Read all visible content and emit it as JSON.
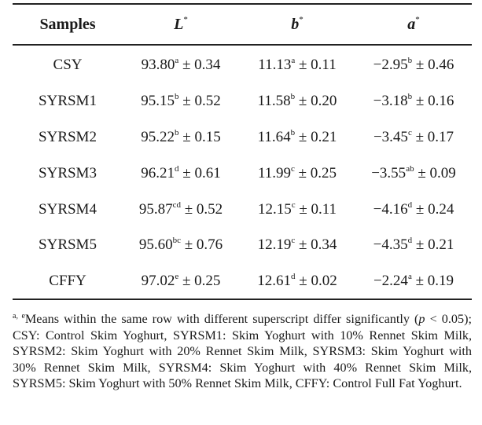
{
  "table": {
    "headers": [
      {
        "main": "Samples",
        "sup": ""
      },
      {
        "main": "L",
        "sup": "*"
      },
      {
        "main": "b",
        "sup": "*"
      },
      {
        "main": "a",
        "sup": "*"
      }
    ],
    "rows": [
      {
        "sample": "CSY",
        "L": {
          "value": "93.80",
          "sup": "a",
          "sd": " ± 0.34"
        },
        "b": {
          "value": "11.13",
          "sup": "a",
          "sd": " ± 0.11"
        },
        "a": {
          "value": "−2.95",
          "sup": "b",
          "sd": " ± 0.46"
        }
      },
      {
        "sample": "SYRSM1",
        "L": {
          "value": "95.15",
          "sup": "b",
          "sd": " ± 0.52"
        },
        "b": {
          "value": "11.58",
          "sup": "b",
          "sd": " ± 0.20"
        },
        "a": {
          "value": "−3.18",
          "sup": "b",
          "sd": " ± 0.16"
        }
      },
      {
        "sample": "SYRSM2",
        "L": {
          "value": "95.22",
          "sup": "b",
          "sd": " ± 0.15"
        },
        "b": {
          "value": "11.64",
          "sup": "b",
          "sd": " ± 0.21"
        },
        "a": {
          "value": "−3.45",
          "sup": "c",
          "sd": " ± 0.17"
        }
      },
      {
        "sample": "SYRSM3",
        "L": {
          "value": "96.21",
          "sup": "d",
          "sd": " ± 0.61"
        },
        "b": {
          "value": "11.99",
          "sup": "c",
          "sd": " ± 0.25"
        },
        "a": {
          "value": "−3.55",
          "sup": "ab",
          "sd": " ± 0.09"
        }
      },
      {
        "sample": "SYRSM4",
        "L": {
          "value": "95.87",
          "sup": "cd",
          "sd": " ± 0.52"
        },
        "b": {
          "value": "12.15",
          "sup": "c",
          "sd": " ± 0.11"
        },
        "a": {
          "value": "−4.16",
          "sup": "d",
          "sd": " ± 0.24"
        }
      },
      {
        "sample": "SYRSM5",
        "L": {
          "value": "95.60",
          "sup": "bc",
          "sd": " ± 0.76"
        },
        "b": {
          "value": "12.19",
          "sup": "c",
          "sd": " ± 0.34"
        },
        "a": {
          "value": "−4.35",
          "sup": "d",
          "sd": " ± 0.21"
        }
      },
      {
        "sample": "CFFY",
        "L": {
          "value": "97.02",
          "sup": "e",
          "sd": " ± 0.25"
        },
        "b": {
          "value": "12.61",
          "sup": "d",
          "sd": " ± 0.02"
        },
        "a": {
          "value": "−2.24",
          "sup": "a",
          "sd": " ± 0.19"
        }
      }
    ]
  },
  "footnote": {
    "marker": "a, e",
    "part1": "Means within the same row with different superscript differ significantly (",
    "p": "p",
    "part2": " < 0.05); CSY: Control Skim Yoghurt, SYRSM1: Skim Yoghurt with 10% Rennet Skim Milk, SYRSM2: Skim Yoghurt with 20% Rennet Skim Milk, SYRSM3: Skim Yoghurt with 30% Rennet Skim Milk, SYRSM4: Skim Yoghurt with 40% Rennet Skim Milk, SYRSM5: Skim Yoghurt with 50% Rennet Skim Milk, CFFY: Control Full Fat Yoghurt."
  }
}
